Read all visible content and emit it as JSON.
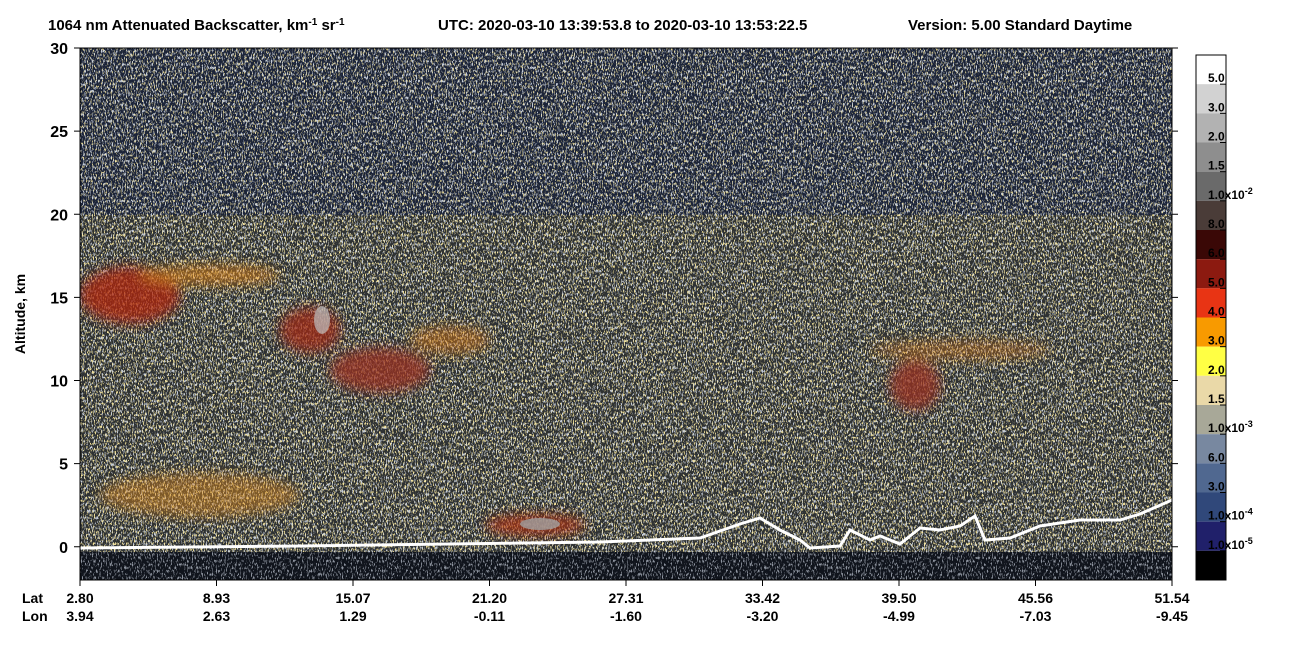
{
  "chart_data": {
    "type": "heatmap",
    "title": [
      "1064 nm Attenuated Backscatter, km",
      "-1",
      " sr",
      "-1"
    ],
    "time_label": "UTC:  2020-03-10 13:39:53.8  to  2020-03-10 13:53:22.5",
    "version_label": "Version: 5.00  Standard  Daytime",
    "ylabel": "Altitude, km",
    "ylim": [
      -2,
      30
    ],
    "yticks": [
      0,
      5,
      10,
      15,
      20,
      25,
      30
    ],
    "x_rows": [
      "Lat",
      "Lon"
    ],
    "lat_labels": [
      "2.80",
      "8.93",
      "15.07",
      "21.20",
      "27.31",
      "33.42",
      "39.50",
      "45.56",
      "51.54"
    ],
    "lon_labels": [
      "3.94",
      "2.63",
      "1.29",
      "-0.11",
      "-1.60",
      "-3.20",
      "-4.99",
      "-7.03",
      "-9.45"
    ],
    "colorbar": {
      "colors": [
        "#ffffff",
        "#d2d2d2",
        "#b2b2b2",
        "#8e8e8e",
        "#6a6a6a",
        "#4a3c38",
        "#3a0806",
        "#8c1a10",
        "#e83414",
        "#f89a00",
        "#ffff44",
        "#ead9a8",
        "#a8a898",
        "#7888a0",
        "#506890",
        "#30487a",
        "#20206a",
        "#000000"
      ],
      "labels": [
        {
          "text": "5.0"
        },
        {
          "text": "3.0"
        },
        {
          "text": "2.0"
        },
        {
          "text": "1.5"
        },
        {
          "text": "1.0x10",
          "sup": "-2"
        },
        {
          "text": "8.0"
        },
        {
          "text": "6.0"
        },
        {
          "text": "5.0"
        },
        {
          "text": "4.0"
        },
        {
          "text": "3.0"
        },
        {
          "text": "2.0"
        },
        {
          "text": "1.5"
        },
        {
          "text": "1.0x10",
          "sup": "-3"
        },
        {
          "text": "6.0"
        },
        {
          "text": "3.0"
        },
        {
          "text": "1.0x10",
          "sup": "-4"
        },
        {
          "text": "1.0x10",
          "sup": "-5"
        }
      ]
    }
  }
}
